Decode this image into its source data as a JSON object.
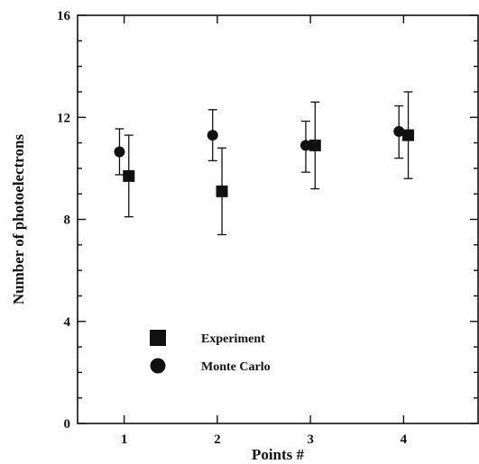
{
  "chart_data": {
    "type": "scatter",
    "xlabel": "Points #",
    "ylabel": "Number of photoelectrons",
    "xlim": [
      0.5,
      4.8
    ],
    "ylim": [
      0,
      16
    ],
    "xticks": [
      1,
      2,
      3,
      4
    ],
    "yticks": [
      0,
      4,
      8,
      12,
      16
    ],
    "xtick_labels": [
      "1",
      "2",
      "3",
      "4"
    ],
    "ytick_labels": [
      "0",
      "4",
      "8",
      "12",
      "16"
    ],
    "grid": false,
    "legend_position": "lower-left",
    "series": [
      {
        "name": "Experiment",
        "marker": "square",
        "x": [
          1.05,
          2.05,
          3.05,
          4.05
        ],
        "y": [
          9.7,
          9.1,
          10.9,
          11.3
        ],
        "err_low": [
          8.1,
          7.4,
          9.2,
          9.6
        ],
        "err_high": [
          11.3,
          10.8,
          12.6,
          13.0
        ]
      },
      {
        "name": "Monte Carlo",
        "marker": "circle",
        "x": [
          0.95,
          1.95,
          2.95,
          3.95
        ],
        "y": [
          10.65,
          11.3,
          10.9,
          11.45
        ],
        "err_low": [
          9.75,
          10.3,
          9.85,
          10.4
        ],
        "err_high": [
          11.55,
          12.3,
          11.85,
          12.45
        ]
      }
    ]
  }
}
